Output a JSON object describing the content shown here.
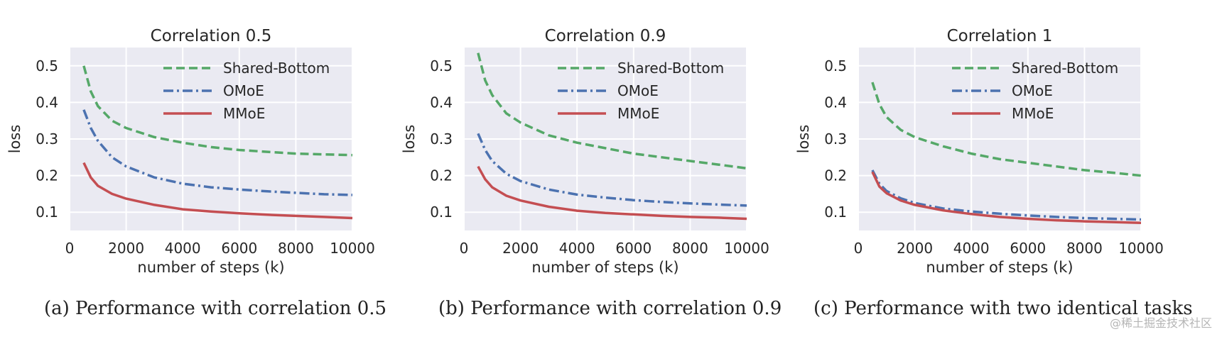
{
  "chart_data": [
    {
      "type": "line",
      "title": "Correlation 0.5",
      "xlabel": "number of steps (k)",
      "ylabel": "loss",
      "xlim": [
        0,
        10000
      ],
      "ylim": [
        0.05,
        0.55
      ],
      "x_ticks": [
        "0",
        "2000",
        "4000",
        "6000",
        "8000",
        "10000"
      ],
      "y_ticks": [
        "0.1",
        "0.2",
        "0.3",
        "0.4",
        "0.5"
      ],
      "grid": true,
      "legend_position": "upper-right",
      "caption": "(a) Performance with correlation 0.5",
      "series": [
        {
          "name": "Shared-Bottom",
          "color": "#55a868",
          "style": "dashed",
          "x": [
            500,
            750,
            1000,
            1500,
            2000,
            3000,
            4000,
            5000,
            6000,
            7000,
            8000,
            9000,
            10000
          ],
          "y": [
            0.5,
            0.43,
            0.39,
            0.35,
            0.33,
            0.305,
            0.29,
            0.278,
            0.27,
            0.265,
            0.26,
            0.258,
            0.256
          ]
        },
        {
          "name": "OMoE",
          "color": "#4c72b0",
          "style": "dashdot",
          "x": [
            500,
            750,
            1000,
            1500,
            2000,
            3000,
            4000,
            5000,
            6000,
            7000,
            8000,
            9000,
            10000
          ],
          "y": [
            0.38,
            0.33,
            0.295,
            0.25,
            0.225,
            0.195,
            0.178,
            0.168,
            0.162,
            0.157,
            0.153,
            0.149,
            0.147
          ]
        },
        {
          "name": "MMoE",
          "color": "#c44e52",
          "style": "solid",
          "x": [
            500,
            750,
            1000,
            1500,
            2000,
            3000,
            4000,
            5000,
            6000,
            7000,
            8000,
            9000,
            10000
          ],
          "y": [
            0.235,
            0.195,
            0.172,
            0.15,
            0.137,
            0.12,
            0.108,
            0.102,
            0.097,
            0.093,
            0.09,
            0.087,
            0.084
          ]
        }
      ]
    },
    {
      "type": "line",
      "title": "Correlation 0.9",
      "xlabel": "number of steps (k)",
      "ylabel": "loss",
      "xlim": [
        0,
        10000
      ],
      "ylim": [
        0.05,
        0.55
      ],
      "x_ticks": [
        "0",
        "2000",
        "4000",
        "6000",
        "8000",
        "10000"
      ],
      "y_ticks": [
        "0.1",
        "0.2",
        "0.3",
        "0.4",
        "0.5"
      ],
      "grid": true,
      "legend_position": "upper-right",
      "caption": "(b) Performance with correlation 0.9",
      "series": [
        {
          "name": "Shared-Bottom",
          "color": "#55a868",
          "style": "dashed",
          "x": [
            500,
            750,
            1000,
            1500,
            2000,
            3000,
            4000,
            5000,
            6000,
            7000,
            8000,
            9000,
            10000
          ],
          "y": [
            0.535,
            0.46,
            0.42,
            0.37,
            0.345,
            0.31,
            0.29,
            0.275,
            0.26,
            0.25,
            0.24,
            0.23,
            0.22
          ]
        },
        {
          "name": "OMoE",
          "color": "#4c72b0",
          "style": "dashdot",
          "x": [
            500,
            750,
            1000,
            1500,
            2000,
            3000,
            4000,
            5000,
            6000,
            7000,
            8000,
            9000,
            10000
          ],
          "y": [
            0.315,
            0.27,
            0.24,
            0.205,
            0.185,
            0.162,
            0.148,
            0.14,
            0.133,
            0.128,
            0.124,
            0.121,
            0.118
          ]
        },
        {
          "name": "MMoE",
          "color": "#c44e52",
          "style": "solid",
          "x": [
            500,
            750,
            1000,
            1500,
            2000,
            3000,
            4000,
            5000,
            6000,
            7000,
            8000,
            9000,
            10000
          ],
          "y": [
            0.225,
            0.19,
            0.168,
            0.145,
            0.132,
            0.115,
            0.104,
            0.098,
            0.094,
            0.09,
            0.087,
            0.085,
            0.082
          ]
        }
      ]
    },
    {
      "type": "line",
      "title": "Correlation 1",
      "xlabel": "number of steps (k)",
      "ylabel": "loss",
      "xlim": [
        0,
        10000
      ],
      "ylim": [
        0.05,
        0.55
      ],
      "x_ticks": [
        "0",
        "2000",
        "4000",
        "6000",
        "8000",
        "10000"
      ],
      "y_ticks": [
        "0.1",
        "0.2",
        "0.3",
        "0.4",
        "0.5"
      ],
      "grid": true,
      "legend_position": "upper-right",
      "caption": "(c) Performance with two identical tasks",
      "series": [
        {
          "name": "Shared-Bottom",
          "color": "#55a868",
          "style": "dashed",
          "x": [
            500,
            750,
            1000,
            1500,
            2000,
            3000,
            4000,
            5000,
            6000,
            7000,
            8000,
            9000,
            10000
          ],
          "y": [
            0.455,
            0.395,
            0.36,
            0.325,
            0.305,
            0.28,
            0.26,
            0.245,
            0.235,
            0.225,
            0.215,
            0.208,
            0.2
          ]
        },
        {
          "name": "OMoE",
          "color": "#4c72b0",
          "style": "dashdot",
          "x": [
            500,
            750,
            1000,
            1500,
            2000,
            3000,
            4000,
            5000,
            6000,
            7000,
            8000,
            9000,
            10000
          ],
          "y": [
            0.215,
            0.178,
            0.158,
            0.138,
            0.125,
            0.11,
            0.102,
            0.096,
            0.091,
            0.087,
            0.084,
            0.082,
            0.08
          ]
        },
        {
          "name": "MMoE",
          "color": "#c44e52",
          "style": "solid",
          "x": [
            500,
            750,
            1000,
            1500,
            2000,
            3000,
            4000,
            5000,
            6000,
            7000,
            8000,
            9000,
            10000
          ],
          "y": [
            0.21,
            0.17,
            0.152,
            0.132,
            0.12,
            0.105,
            0.095,
            0.087,
            0.082,
            0.078,
            0.075,
            0.073,
            0.071
          ]
        }
      ]
    }
  ],
  "watermark": "@稀土掘金技术社区"
}
